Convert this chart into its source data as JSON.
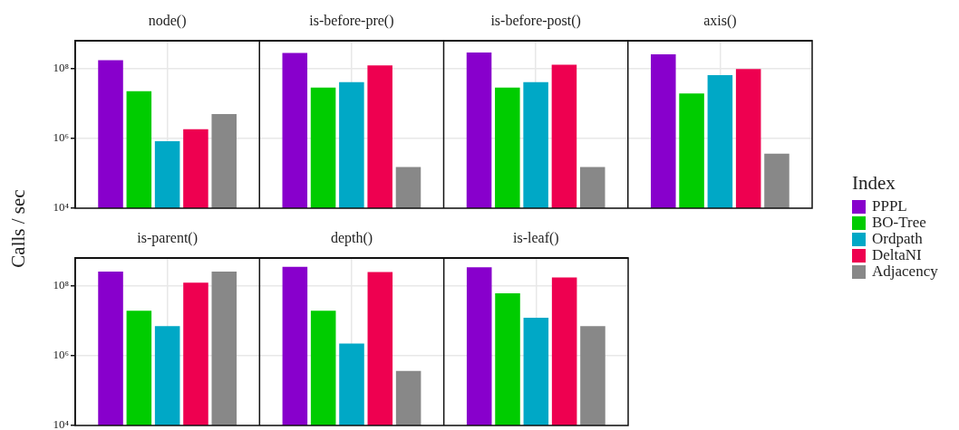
{
  "chart_data": [
    {
      "type": "bar",
      "ylabel": "Calls / sec",
      "legend_title": "Index",
      "legend": "right",
      "categories": [
        "node()",
        "is-before-pre()",
        "is-before-post()",
        "axis()"
      ],
      "log": true,
      "grid": true,
      "ylim": [
        10000,
        600000000
      ],
      "yticks": [
        {
          "value": 10000,
          "label": "10⁴"
        },
        {
          "value": 1000000,
          "label": "10⁶"
        },
        {
          "value": 100000000,
          "label": "10⁸"
        }
      ],
      "series": [
        {
          "name": "PPPL",
          "color": "#8800cc",
          "values": [
            170000000,
            270000000,
            280000000,
            250000000
          ]
        },
        {
          "name": "BO-Tree",
          "color": "#00cc00",
          "values": [
            22000000,
            28000000,
            28000000,
            19000000
          ]
        },
        {
          "name": "Ordpath",
          "color": "#00a8c6",
          "values": [
            820000,
            40000000,
            40000000,
            63000000
          ]
        },
        {
          "name": "DeltaNI",
          "color": "#ee0050",
          "values": [
            1800000,
            120000000,
            126000000,
            94000000
          ]
        },
        {
          "name": "Adjacency",
          "color": "#888888",
          "values": [
            4900000,
            150000,
            150000,
            360000
          ]
        }
      ]
    },
    {
      "type": "bar",
      "categories": [
        "is-parent()",
        "depth()",
        "is-leaf()"
      ],
      "log": true,
      "grid": true,
      "ylim": [
        10000,
        600000000
      ],
      "yticks": [
        {
          "value": 10000,
          "label": "10⁴"
        },
        {
          "value": 1000000,
          "label": "10⁶"
        },
        {
          "value": 100000000,
          "label": "10⁸"
        }
      ],
      "series": [
        {
          "color": "#8800cc",
          "values": [
            250000000,
            340000000,
            330000000
          ]
        },
        {
          "color": "#00cc00",
          "values": [
            19000000,
            19000000,
            60000000
          ]
        },
        {
          "color": "#00a8c6",
          "values": [
            6900000,
            2200000,
            12000000
          ]
        },
        {
          "color": "#ee0050",
          "values": [
            120000000,
            240000000,
            170000000
          ]
        },
        {
          "color": "#888888",
          "values": [
            250000000,
            360000,
            6900000
          ]
        }
      ]
    }
  ]
}
